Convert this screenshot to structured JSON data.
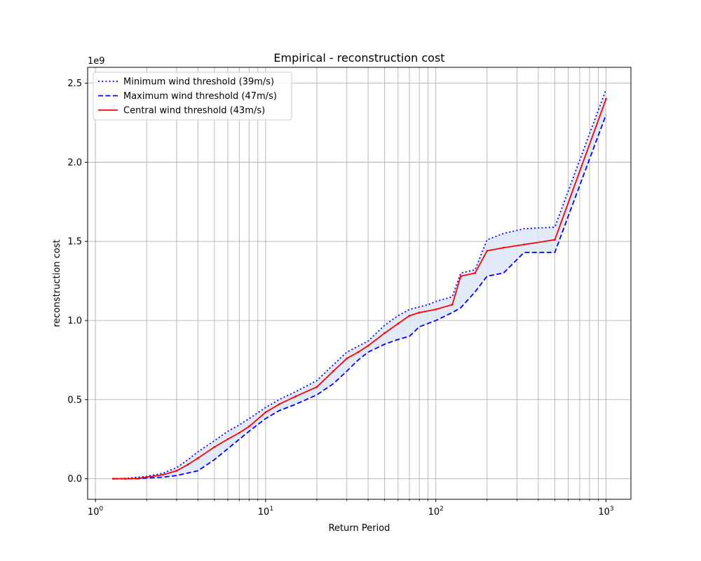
{
  "chart_data": {
    "type": "line",
    "title": "Empirical - reconstruction cost",
    "xlabel": "Return Period",
    "ylabel": "reconstruction cost",
    "xscale": "log",
    "xlim": [
      0.9,
      1400
    ],
    "ylim": [
      -0.13,
      2.6
    ],
    "y_multiplier_label": "1e9",
    "grid": "on (major and minor x, major y)",
    "legend_position": "upper left",
    "x_ticks": [
      {
        "base": "10",
        "exp": "0",
        "value": 1
      },
      {
        "base": "10",
        "exp": "1",
        "value": 10
      },
      {
        "base": "10",
        "exp": "2",
        "value": 100
      },
      {
        "base": "10",
        "exp": "3",
        "value": 1000
      }
    ],
    "y_ticks": [
      {
        "label": "0.0",
        "value": 0.0
      },
      {
        "label": "0.5",
        "value": 0.5
      },
      {
        "label": "1.0",
        "value": 1.0
      },
      {
        "label": "1.5",
        "value": 1.5
      },
      {
        "label": "2.0",
        "value": 2.0
      },
      {
        "label": "2.5",
        "value": 2.5
      }
    ],
    "band_color": "#dde6f7",
    "series": [
      {
        "name": "Minimum wind threshold (39m/s)",
        "color": "#0000ff",
        "style": "dotted",
        "points": [
          [
            1.27,
            0.0
          ],
          [
            1.5,
            0.002
          ],
          [
            1.8,
            0.01
          ],
          [
            2.0,
            0.015
          ],
          [
            2.5,
            0.035
          ],
          [
            3.0,
            0.07
          ],
          [
            3.5,
            0.12
          ],
          [
            4.0,
            0.17
          ],
          [
            5.0,
            0.24
          ],
          [
            6.0,
            0.3
          ],
          [
            7.0,
            0.34
          ],
          [
            8.0,
            0.38
          ],
          [
            10.0,
            0.45
          ],
          [
            12.0,
            0.5
          ],
          [
            15.0,
            0.55
          ],
          [
            20.0,
            0.62
          ],
          [
            25.0,
            0.72
          ],
          [
            30.0,
            0.8
          ],
          [
            40.0,
            0.87
          ],
          [
            50.0,
            0.97
          ],
          [
            60.0,
            1.03
          ],
          [
            70.0,
            1.07
          ],
          [
            90.0,
            1.1
          ],
          [
            100.0,
            1.12
          ],
          [
            125.0,
            1.15
          ],
          [
            140.0,
            1.3
          ],
          [
            170.0,
            1.32
          ],
          [
            200.0,
            1.51
          ],
          [
            250.0,
            1.55
          ],
          [
            330.0,
            1.58
          ],
          [
            500.0,
            1.59
          ],
          [
            1000.0,
            2.46
          ]
        ]
      },
      {
        "name": "Maximum wind threshold (47m/s)",
        "color": "#0000ff",
        "style": "dashed",
        "points": [
          [
            1.27,
            0.0
          ],
          [
            1.5,
            0.0
          ],
          [
            1.8,
            0.0
          ],
          [
            2.0,
            0.004
          ],
          [
            2.5,
            0.01
          ],
          [
            3.0,
            0.02
          ],
          [
            4.0,
            0.05
          ],
          [
            5.0,
            0.12
          ],
          [
            6.0,
            0.19
          ],
          [
            8.0,
            0.3
          ],
          [
            10.0,
            0.38
          ],
          [
            12.0,
            0.43
          ],
          [
            15.0,
            0.47
          ],
          [
            20.0,
            0.53
          ],
          [
            25.0,
            0.6
          ],
          [
            30.0,
            0.68
          ],
          [
            35.0,
            0.75
          ],
          [
            40.0,
            0.8
          ],
          [
            50.0,
            0.85
          ],
          [
            60.0,
            0.88
          ],
          [
            70.0,
            0.9
          ],
          [
            80.0,
            0.96
          ],
          [
            100.0,
            1.0
          ],
          [
            125.0,
            1.05
          ],
          [
            140.0,
            1.08
          ],
          [
            170.0,
            1.18
          ],
          [
            200.0,
            1.28
          ],
          [
            250.0,
            1.3
          ],
          [
            330.0,
            1.43
          ],
          [
            500.0,
            1.43
          ],
          [
            1000.0,
            2.3
          ]
        ]
      },
      {
        "name": "Central wind threshold (43m/s)",
        "color": "#ff0000",
        "style": "solid",
        "points": [
          [
            1.27,
            0.0
          ],
          [
            1.5,
            0.0
          ],
          [
            1.8,
            0.002
          ],
          [
            2.0,
            0.01
          ],
          [
            2.5,
            0.025
          ],
          [
            3.0,
            0.05
          ],
          [
            3.5,
            0.09
          ],
          [
            4.0,
            0.13
          ],
          [
            5.0,
            0.2
          ],
          [
            6.0,
            0.25
          ],
          [
            7.0,
            0.29
          ],
          [
            8.0,
            0.33
          ],
          [
            10.0,
            0.42
          ],
          [
            12.0,
            0.47
          ],
          [
            15.0,
            0.52
          ],
          [
            20.0,
            0.58
          ],
          [
            25.0,
            0.68
          ],
          [
            30.0,
            0.76
          ],
          [
            35.0,
            0.8
          ],
          [
            40.0,
            0.84
          ],
          [
            50.0,
            0.92
          ],
          [
            60.0,
            0.98
          ],
          [
            70.0,
            1.03
          ],
          [
            80.0,
            1.05
          ],
          [
            100.0,
            1.07
          ],
          [
            125.0,
            1.1
          ],
          [
            140.0,
            1.28
          ],
          [
            170.0,
            1.3
          ],
          [
            200.0,
            1.44
          ],
          [
            250.0,
            1.46
          ],
          [
            330.0,
            1.48
          ],
          [
            500.0,
            1.51
          ],
          [
            1000.0,
            2.4
          ]
        ]
      }
    ]
  }
}
